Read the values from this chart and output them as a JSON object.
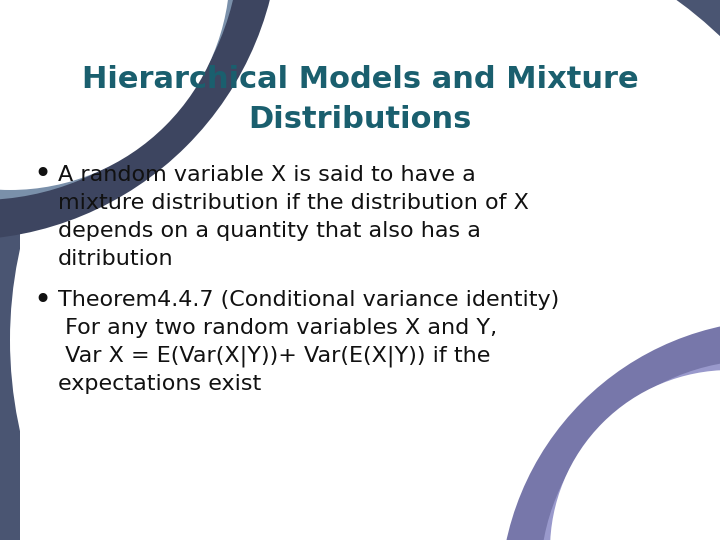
{
  "title_line1": "Hierarchical Models and Mixture",
  "title_line2": "Distributions",
  "title_color": "#1a5f6e",
  "title_fontsize": 22,
  "body_fontsize": 16,
  "body_color": "#111111",
  "bg_color": "#4a5572",
  "white_area_color": "#ffffff",
  "corner_dark": "#3d4560",
  "corner_mid": "#7a8faa",
  "corner_bottom_purple": "#7777aa",
  "corner_bottom_light": "#9999cc",
  "bullet1_lines": [
    "A random variable X is said to have a",
    "mixture distribution if the distribution of X",
    "depends on a quantity that also has a",
    "ditribution"
  ],
  "bullet2_line1": "Theorem4.4.7 (Conditional variance identity)",
  "bullet2_lines": [
    " For any two random variables X and Y,",
    " Var X = E(Var(X|Y))+ Var(E(X|Y)) if the",
    "expectations exist"
  ]
}
